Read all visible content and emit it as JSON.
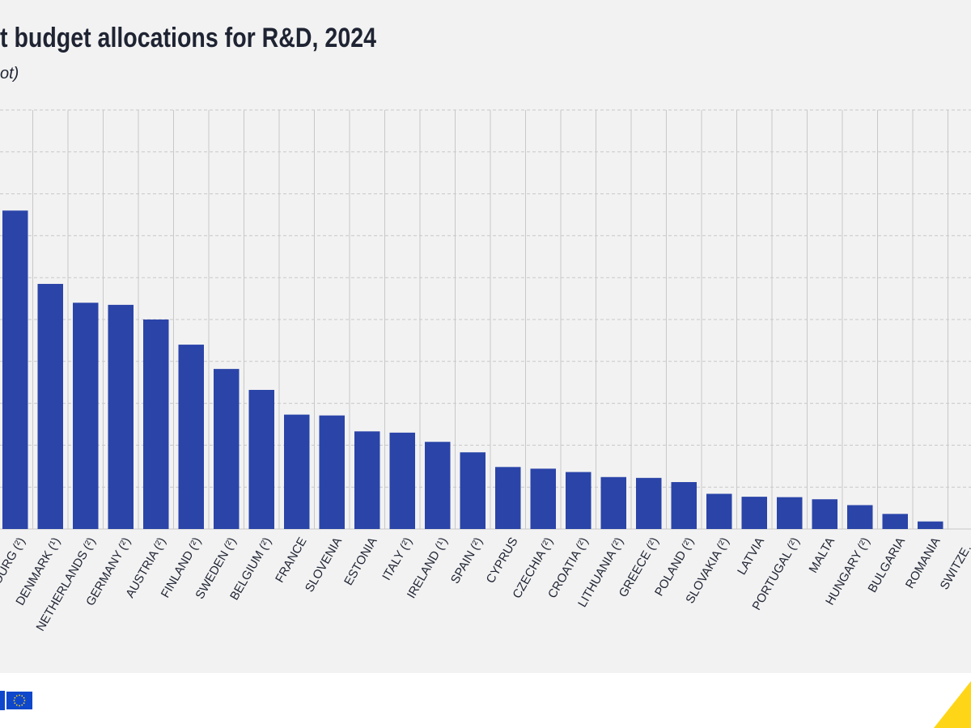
{
  "header": {
    "title": "t budget allocations for R&D, 2024",
    "subtitle": "ot)"
  },
  "colors": {
    "bar": "#2a44a8",
    "grid": "#c8c8c8",
    "background": "#f2f2f2",
    "footer_accent": "#ffd617",
    "eu_blue": "#0e47cb",
    "eu_star": "#ffd617"
  },
  "icons": [
    "eu-flag-icon",
    "brand-corner-accent"
  ],
  "chart_data": {
    "type": "bar",
    "title": "t budget allocations for R&D, 2024",
    "subtitle": "ot)",
    "xlabel": "",
    "ylabel": "",
    "ylim": [
      0,
      100
    ],
    "grid": true,
    "categories": [
      "…OURG (²)",
      "DENMARK (¹)",
      "NETHERLANDS (²)",
      "GERMANY (²)",
      "AUSTRIA (²)",
      "FINLAND (²)",
      "SWEDEN (²)",
      "BELGIUM (²)",
      "FRANCE",
      "SLOVENIA",
      "ESTONIA",
      "ITALY (²)",
      "IRELAND (¹)",
      "SPAIN (²)",
      "CYPRUS",
      "CZECHIA (²)",
      "CROATIA (²)",
      "LITHUANIA (²)",
      "GREECE (²)",
      "POLAND (²)",
      "SLOVAKIA (²)",
      "LATVIA",
      "PORTUGAL (²)",
      "MALTA",
      "HUNGARY (²)",
      "BULGARIA",
      "ROMANIA",
      "SWITZE…"
    ],
    "values": [
      76,
      58.5,
      54,
      53.5,
      50,
      44,
      38.2,
      33.2,
      27.3,
      27.1,
      23.3,
      23,
      20.8,
      18.3,
      14.8,
      14.4,
      13.6,
      12.4,
      12.2,
      11.2,
      8.4,
      7.7,
      7.6,
      7.1,
      5.7,
      3.6,
      1.8,
      null
    ]
  }
}
